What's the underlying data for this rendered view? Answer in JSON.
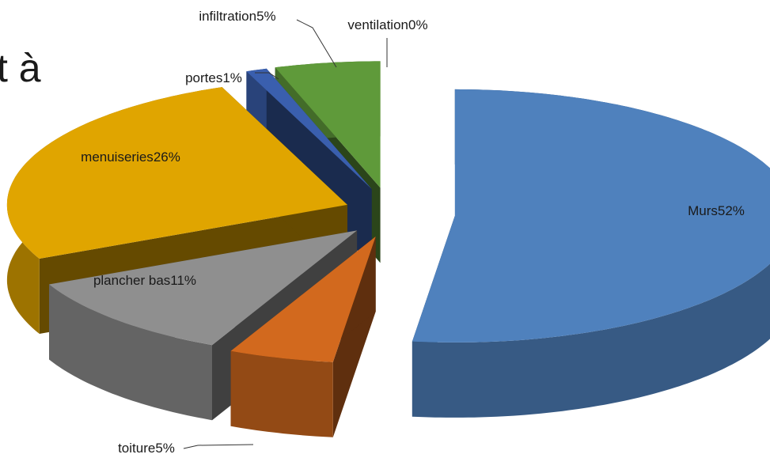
{
  "slide_title_fragment": "t à",
  "chart_data": {
    "type": "pie3d",
    "categories": [
      "Murs",
      "toiture",
      "plancher bas",
      "menuiseries",
      "portes",
      "infiltration",
      "ventilation"
    ],
    "values": [
      52,
      5,
      11,
      26,
      1,
      5,
      0
    ],
    "value_labels": [
      "52%",
      "5%",
      "11%",
      "26%",
      "1%",
      "5%",
      "0%"
    ],
    "colors": [
      "#4f81bd",
      "#d2691e",
      "#8f8f8f",
      "#e0a500",
      "#3a5fae",
      "#5f9a3a",
      "#9dc3e6"
    ]
  }
}
